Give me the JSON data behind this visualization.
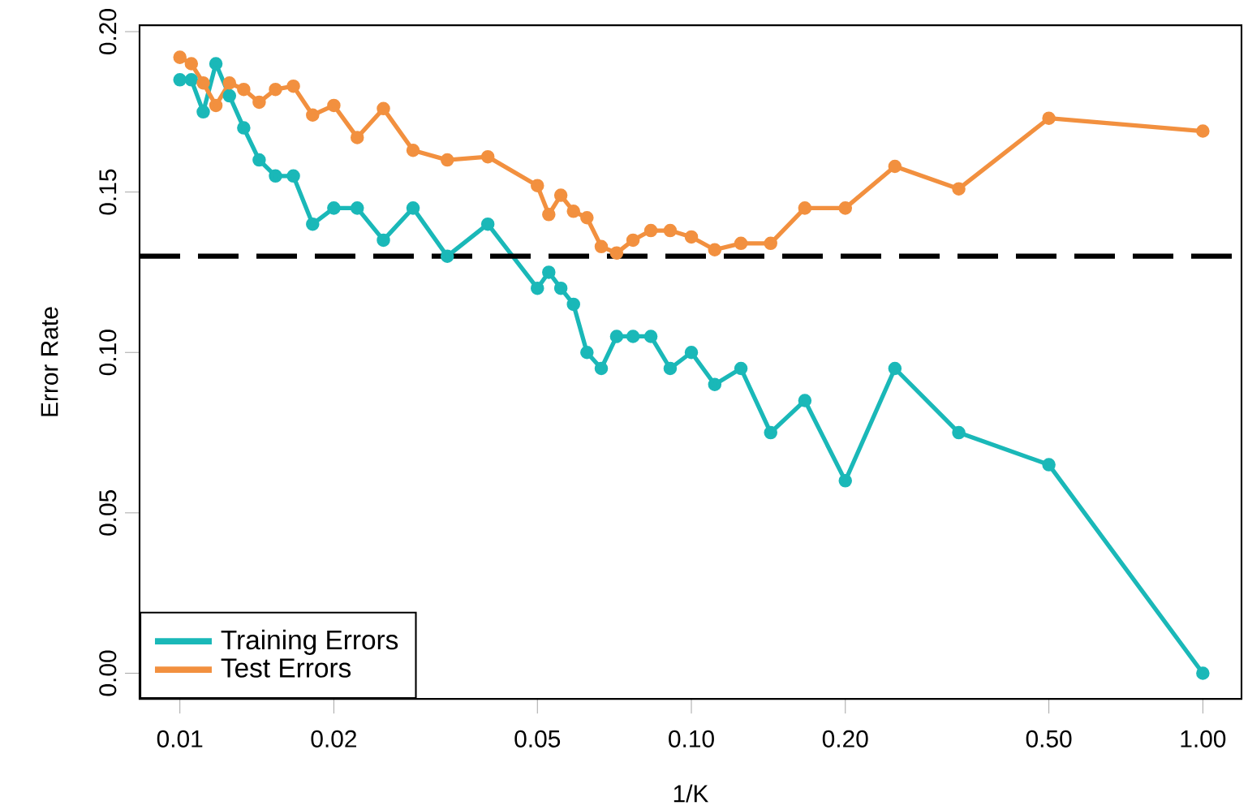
{
  "chart_data": {
    "type": "line",
    "xlabel": "1/K",
    "ylabel": "Error Rate",
    "x": [
      0.01,
      0.01053,
      0.01111,
      0.01176,
      0.0125,
      0.01333,
      0.01429,
      0.01538,
      0.01667,
      0.01818,
      0.02,
      0.02222,
      0.025,
      0.02857,
      0.03333,
      0.04,
      0.05,
      0.05263,
      0.05556,
      0.05882,
      0.0625,
      0.06667,
      0.07143,
      0.07692,
      0.08333,
      0.09091,
      0.1,
      0.1111,
      0.125,
      0.1429,
      0.1667,
      0.2,
      0.25,
      0.3333,
      0.5,
      1
    ],
    "series": [
      {
        "name": "Training Errors",
        "color": "#1ab8b8",
        "values": [
          0.185,
          0.185,
          0.175,
          0.19,
          0.18,
          0.17,
          0.16,
          0.155,
          0.155,
          0.14,
          0.145,
          0.145,
          0.135,
          0.145,
          0.13,
          0.14,
          0.12,
          0.125,
          0.12,
          0.115,
          0.1,
          0.095,
          0.105,
          0.105,
          0.105,
          0.095,
          0.1,
          0.09,
          0.095,
          0.075,
          0.085,
          0.06,
          0.095,
          0.075,
          0.065,
          0.0
        ]
      },
      {
        "name": "Test Errors",
        "color": "#f2903f",
        "values": [
          0.192,
          0.19,
          0.184,
          0.177,
          0.184,
          0.182,
          0.178,
          0.182,
          0.183,
          0.174,
          0.177,
          0.167,
          0.176,
          0.163,
          0.16,
          0.161,
          0.152,
          0.143,
          0.149,
          0.144,
          0.142,
          0.133,
          0.131,
          0.135,
          0.138,
          0.138,
          0.136,
          0.132,
          0.134,
          0.134,
          0.145,
          0.145,
          0.158,
          0.151,
          0.173,
          0.169
        ]
      }
    ],
    "log": "x",
    "xlim": [
      0.00834,
      1.19
    ],
    "xticks": [
      0.01,
      0.02,
      0.05,
      {
        "value": 0.1,
        "label": "0.10"
      },
      {
        "value": 0.2,
        "label": "0.20"
      },
      {
        "value": 0.5,
        "label": "0.50"
      },
      {
        "value": 1,
        "label": "1.00"
      }
    ],
    "ylim": [
      -0.008,
      0.202
    ],
    "yticks": [
      {
        "value": 0,
        "label": "0.00"
      },
      0.05,
      {
        "value": 0.1,
        "label": "0.10"
      },
      0.15,
      {
        "value": 0.2,
        "label": "0.20"
      }
    ],
    "ref_lines": [
      {
        "axis": "y",
        "value": 0.13,
        "color": "#000000",
        "line_style": "dashed"
      }
    ],
    "marker": "circle",
    "line_style": "solid",
    "legend": "bottom left",
    "grid": false
  }
}
